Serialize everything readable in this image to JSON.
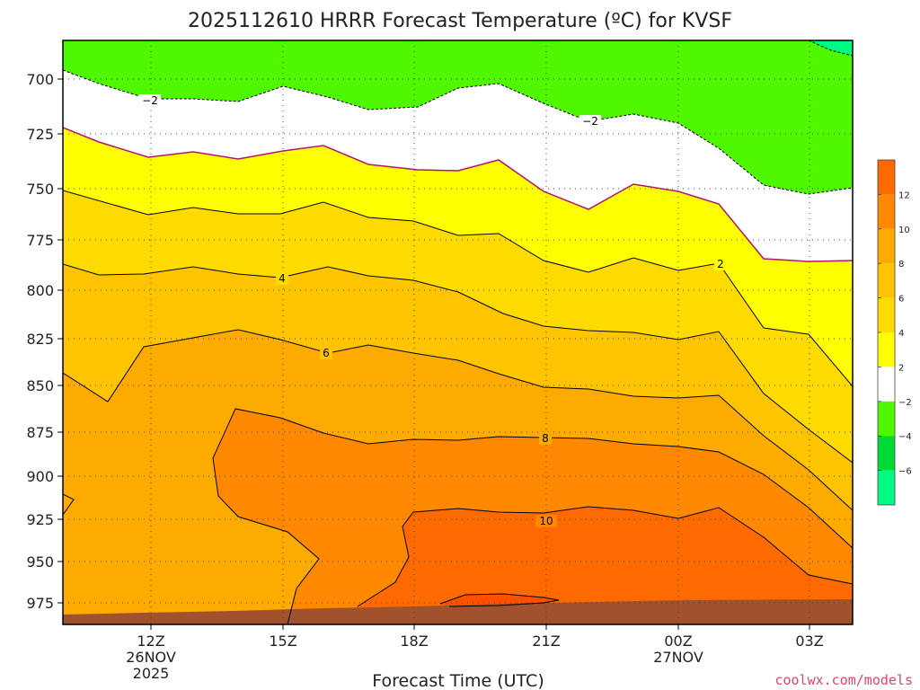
{
  "chart_data": {
    "type": "heatmap",
    "title": "2025112610 HRRR Forecast Temperature (ºC) for KVSF",
    "xlabel": "Forecast Time (UTC)",
    "ylabel": "",
    "x_ticks": [
      {
        "label": "12Z",
        "sub": [
          "26NOV",
          "2025"
        ]
      },
      {
        "label": "15Z",
        "sub": []
      },
      {
        "label": "18Z",
        "sub": []
      },
      {
        "label": "21Z",
        "sub": []
      },
      {
        "label": "00Z",
        "sub": [
          "27NOV"
        ]
      },
      {
        "label": "03Z",
        "sub": []
      }
    ],
    "y_ticks": [
      "700",
      "725",
      "750",
      "775",
      "800",
      "825",
      "850",
      "875",
      "900",
      "925",
      "950",
      "975"
    ],
    "y_axis_inverted": true,
    "colorbar": {
      "tick_labels": [
        "12",
        "10",
        "8",
        "6",
        "4",
        "2",
        "−2",
        "−4",
        "−6"
      ],
      "colors": [
        "#fe6a00",
        "#fe8800",
        "#feab00",
        "#fec400",
        "#fedb00",
        "#fefe00",
        "#ffffff",
        "#50f800",
        "#00db35",
        "#00fa82"
      ]
    },
    "contour_labels": [
      "−2",
      "−2",
      "2",
      "4",
      "6",
      "8",
      "10"
    ],
    "credit": "coolwx.com/models"
  }
}
